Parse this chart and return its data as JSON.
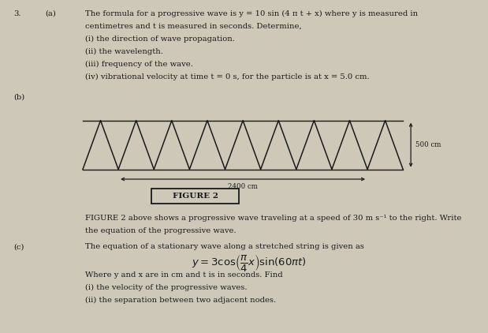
{
  "bg_color": "#cdc8b8",
  "text_color": "#1a1a1a",
  "question_num": "3.",
  "part_a_label": "(a)",
  "part_b_label": "(b)",
  "part_c_label": "(c)",
  "part_a_line1": "The formula for a progressive wave is y = 10 sin (4 π t + x) where y is measured in",
  "part_a_line2": "centimetres and t is measured in seconds. Determine,",
  "part_a_i": "(i) the direction of wave propagation.",
  "part_a_ii": "(ii) the wavelength.",
  "part_a_iii": "(iii) frequency of the wave.",
  "part_a_iv": "(iv) vibrational velocity at time t = 0 s, for the particle is at x = 5.0 cm.",
  "wave_label_width": "2400 cm",
  "wave_label_height": "500 cm",
  "figure_label": "FIGURE 2",
  "part_b_desc1": "FIGURE 2 above shows a progressive wave traveling at a speed of 30 m s⁻¹ to the right. Write",
  "part_b_desc2": "the equation of the progressive wave.",
  "part_c_desc": "The equation of a stationary wave along a stretched string is given as",
  "part_c_where": "Where y and x are in cm and t is in seconds. Find",
  "part_c_i": "(i) the velocity of the progressive waves.",
  "part_c_ii": "(ii) the separation between two adjacent nodes.",
  "num_triangles": 9,
  "wave_amplitude": 1.0
}
